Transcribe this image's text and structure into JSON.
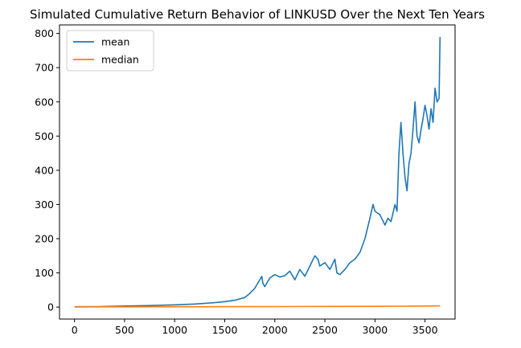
{
  "chart_data": {
    "type": "line",
    "title": "Simulated Cumulative Return Behavior of LINKUSD Over the Next Ten Years",
    "xlabel": "",
    "ylabel": "",
    "xlim": [
      -150,
      3800
    ],
    "ylim": [
      -35,
      825
    ],
    "xticks": [
      0,
      500,
      1000,
      1500,
      2000,
      2500,
      3000,
      3500
    ],
    "yticks": [
      0,
      100,
      200,
      300,
      400,
      500,
      600,
      700,
      800
    ],
    "grid": false,
    "legend_position": "top-left",
    "series": [
      {
        "name": "mean",
        "color": "#1f77b4",
        "x": [
          0,
          250,
          500,
          750,
          1000,
          1200,
          1400,
          1500,
          1600,
          1700,
          1750,
          1800,
          1850,
          1870,
          1880,
          1900,
          1950,
          2000,
          2050,
          2100,
          2150,
          2200,
          2250,
          2300,
          2350,
          2400,
          2430,
          2450,
          2500,
          2550,
          2600,
          2620,
          2650,
          2700,
          2750,
          2800,
          2850,
          2900,
          2950,
          2980,
          3000,
          3050,
          3100,
          3130,
          3160,
          3200,
          3220,
          3240,
          3260,
          3280,
          3300,
          3320,
          3340,
          3360,
          3380,
          3400,
          3420,
          3440,
          3460,
          3480,
          3500,
          3520,
          3540,
          3560,
          3580,
          3600,
          3620,
          3640,
          3650
        ],
        "y": [
          1,
          1.5,
          3,
          4.5,
          6.5,
          9,
          13,
          16,
          20,
          28,
          40,
          55,
          80,
          90,
          70,
          60,
          85,
          95,
          88,
          92,
          105,
          80,
          110,
          90,
          120,
          150,
          140,
          120,
          130,
          110,
          140,
          100,
          95,
          110,
          130,
          140,
          160,
          200,
          260,
          300,
          280,
          270,
          240,
          260,
          250,
          300,
          280,
          450,
          540,
          450,
          380,
          340,
          420,
          450,
          520,
          600,
          500,
          480,
          520,
          550,
          590,
          560,
          520,
          580,
          540,
          640,
          600,
          610,
          790
        ]
      },
      {
        "name": "median",
        "color": "#ff7f0e",
        "x": [
          0,
          500,
          1000,
          1500,
          2000,
          2500,
          3000,
          3300,
          3500,
          3650
        ],
        "y": [
          0.5,
          0.7,
          0.9,
          1.1,
          1.5,
          1.8,
          2.2,
          2.5,
          3.0,
          3.5
        ]
      }
    ]
  }
}
